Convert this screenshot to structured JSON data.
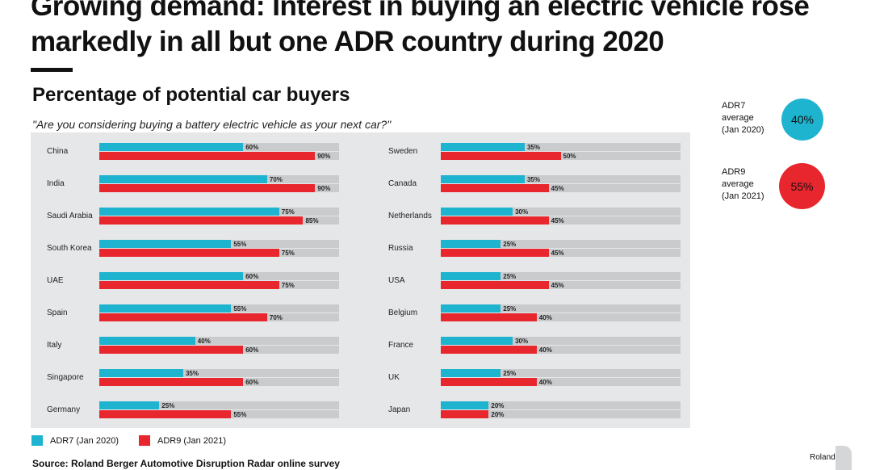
{
  "header": {
    "title": "Growing demand: Interest in buying an electric vehicle rose markedly in all but one ADR country during 2020"
  },
  "chart_data": {
    "type": "bar",
    "orientation": "horizontal",
    "title": "Percentage of potential car buyers",
    "subtitle": "\"Are you considering buying a battery electric vehicle as your next car?\"",
    "xlim": [
      0,
      100
    ],
    "colors": {
      "ADR7 (Jan 2020)": "#1eb4cf",
      "ADR9 (Jan 2021)": "#e8262d",
      "track": "#c9cbcd"
    },
    "legend_placement": "bottom-left",
    "groups": [
      {
        "categories": [
          "China",
          "India",
          "Saudi Arabia",
          "South Korea",
          "UAE",
          "Spain",
          "Italy",
          "Singapore",
          "Germany"
        ],
        "series": [
          {
            "name": "ADR7 (Jan 2020)",
            "values": [
              60,
              70,
              75,
              55,
              60,
              55,
              40,
              35,
              25
            ]
          },
          {
            "name": "ADR9 (Jan 2021)",
            "values": [
              90,
              90,
              85,
              75,
              75,
              70,
              60,
              60,
              55
            ]
          }
        ]
      },
      {
        "categories": [
          "Sweden",
          "Canada",
          "Netherlands",
          "Russia",
          "USA",
          "Belgium",
          "France",
          "UK",
          "Japan"
        ],
        "series": [
          {
            "name": "ADR7 (Jan 2020)",
            "values": [
              35,
              35,
              30,
              25,
              25,
              25,
              30,
              25,
              20
            ]
          },
          {
            "name": "ADR9 (Jan 2021)",
            "values": [
              50,
              45,
              45,
              45,
              45,
              40,
              40,
              40,
              20
            ]
          }
        ]
      }
    ],
    "legend": [
      "ADR7 (Jan 2020)",
      "ADR9 (Jan 2021)"
    ]
  },
  "averages": [
    {
      "label1": "ADR7",
      "label2": "average",
      "label3": "(Jan 2020)",
      "value": "40%",
      "color": "#1eb4cf"
    },
    {
      "label1": "ADR9",
      "label2": "average",
      "label3": "(Jan 2021)",
      "value": "55%",
      "color": "#e8262d"
    }
  ],
  "footer": {
    "source": "Source: Roland Berger Automotive Disruption Radar online survey",
    "logo": "Roland Berger"
  }
}
